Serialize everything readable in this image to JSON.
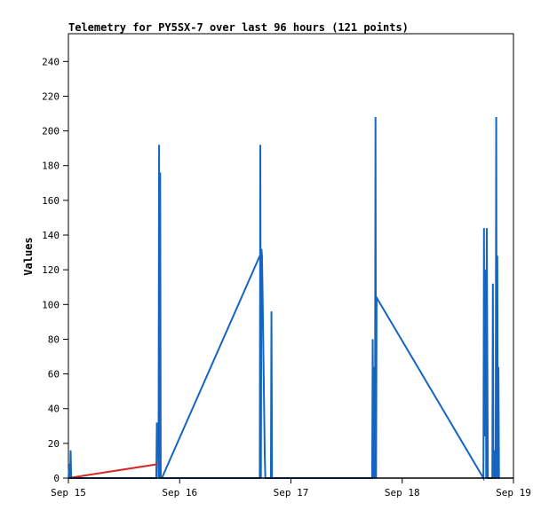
{
  "chart_data": {
    "type": "line",
    "title": "Telemetry for PY5SX-7 over last 96 hours (121 points)",
    "xlabel": "",
    "ylabel": "Values",
    "ylim": [
      0,
      256
    ],
    "xlim": [
      0,
      4
    ],
    "y_ticks": [
      0,
      20,
      40,
      60,
      80,
      100,
      120,
      140,
      160,
      180,
      200,
      220,
      240
    ],
    "x_ticks": [
      {
        "value": 0,
        "label": "Sep 15"
      },
      {
        "value": 1,
        "label": "Sep 16"
      },
      {
        "value": 2,
        "label": "Sep 17"
      },
      {
        "value": 3,
        "label": "Sep 18"
      },
      {
        "value": 4,
        "label": "Sep 19"
      }
    ],
    "grid": false,
    "series": [
      {
        "color": "#d62728",
        "x": [
          0.0,
          0.8
        ],
        "y": [
          0,
          8
        ]
      },
      {
        "color": "#1565c0",
        "x": [
          0.0,
          0.01,
          0.015,
          0.02,
          0.025,
          0.03,
          0.79,
          0.795,
          0.8,
          0.805,
          0.81,
          0.815,
          0.82,
          0.825,
          0.83,
          1.72,
          1.725,
          1.73,
          1.735,
          1.74,
          1.745,
          1.75,
          1.755,
          1.76,
          1.765,
          1.77,
          1.78,
          1.82,
          1.825,
          1.83,
          2.73,
          2.735,
          2.74,
          2.745,
          2.75,
          2.755,
          2.76,
          2.765,
          2.77,
          3.73,
          3.735,
          3.74,
          3.745,
          3.75,
          3.755,
          3.76,
          3.765,
          3.77,
          3.775,
          3.78,
          3.81,
          3.815,
          3.82,
          3.825,
          3.83,
          3.84,
          3.845,
          3.85,
          3.855,
          3.86,
          3.865,
          3.87,
          3.875
        ],
        "y": [
          0,
          8,
          0,
          16,
          0,
          0,
          0,
          32,
          24,
          32,
          0,
          192,
          0,
          176,
          0,
          0,
          192,
          0,
          132,
          128,
          108,
          84,
          60,
          36,
          12,
          0,
          0,
          0,
          96,
          0,
          0,
          80,
          0,
          64,
          36,
          0,
          208,
          0,
          104,
          0,
          144,
          24,
          72,
          120,
          0,
          144,
          72,
          0,
          0,
          0,
          0,
          112,
          0,
          16,
          0,
          0,
          208,
          0,
          128,
          0,
          64,
          0,
          0
        ]
      }
    ],
    "connector": {
      "color": "#1565c0",
      "x": [
        0.84,
        1.72
      ],
      "y": [
        0,
        128
      ]
    }
  }
}
